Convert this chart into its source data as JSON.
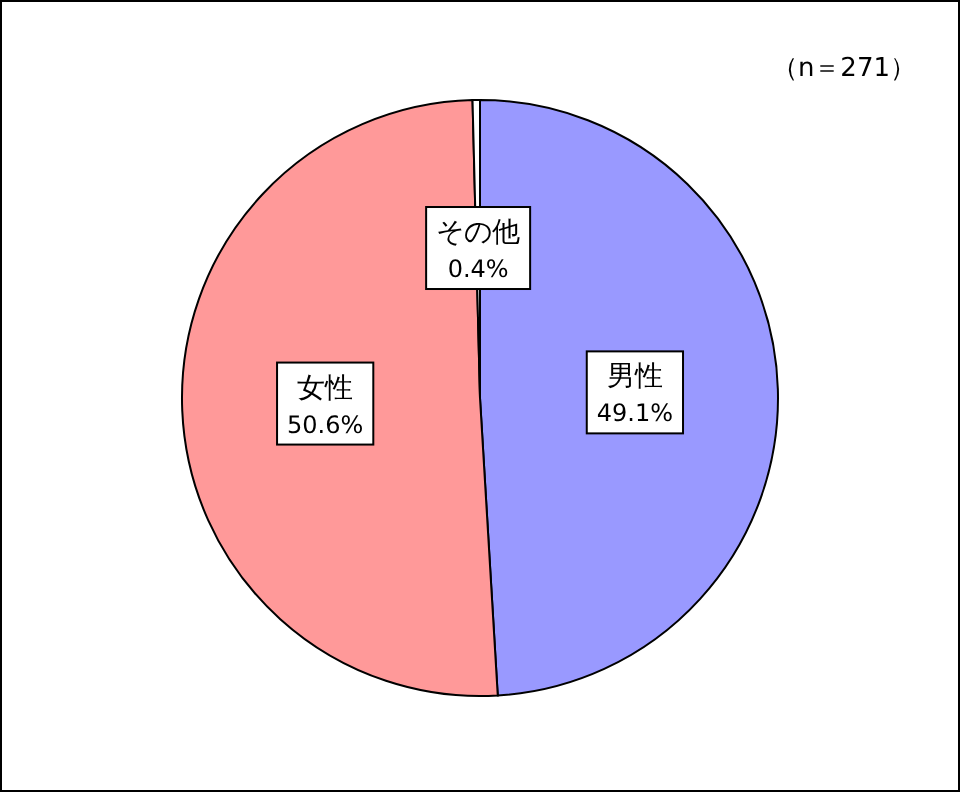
{
  "chart_data": {
    "type": "pie",
    "categories": [
      "男性",
      "女性",
      "その他"
    ],
    "values": [
      49.1,
      50.6,
      0.4
    ],
    "colors": [
      "#9999ff",
      "#ff9999",
      "#ffffff"
    ],
    "value_labels": [
      "49.1%",
      "50.6%",
      "0.4%"
    ],
    "annotations": [
      "（n＝271）"
    ]
  }
}
